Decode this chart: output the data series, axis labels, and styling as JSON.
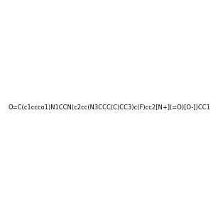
{
  "smiles": "O=C(c1ccco1)N1CCN(c2cc(N3CCC(C)CC3)c(F)cc2[N+](=O)[O-])CC1",
  "image_size": 300,
  "background_color": "#f0f0f0"
}
